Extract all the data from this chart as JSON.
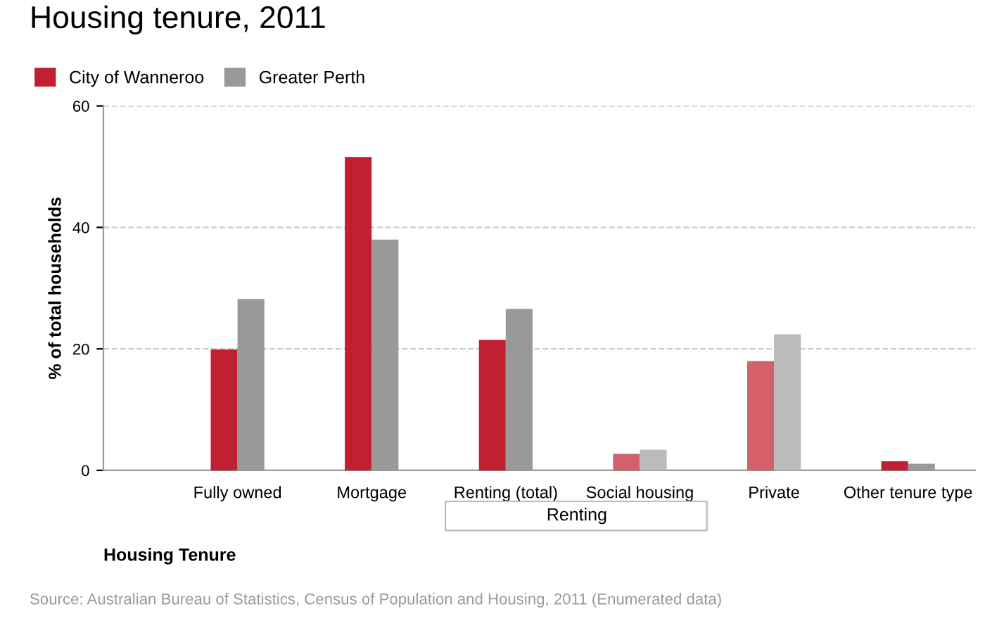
{
  "chart_data": {
    "type": "bar",
    "title": "Housing tenure, 2011",
    "xlabel": "Housing Tenure",
    "ylabel": "% of total households",
    "categories": [
      "Fully owned",
      "Mortgage",
      "Renting (total)",
      "Social housing",
      "Private",
      "Other tenure type"
    ],
    "series": [
      {
        "name": "City of Wanneroo",
        "color": "#c0202f",
        "colors": [
          "#c0202f",
          "#c0202f",
          "#c0202f",
          "#d4606a",
          "#d4606a",
          "#c0202f"
        ],
        "values": [
          19.9,
          51.6,
          21.5,
          2.7,
          18.0,
          1.5
        ]
      },
      {
        "name": "Greater Perth",
        "color": "#999999",
        "colors": [
          "#999999",
          "#999999",
          "#999999",
          "#bbbbbb",
          "#bbbbbb",
          "#999999"
        ],
        "values": [
          28.2,
          38.0,
          26.6,
          3.4,
          22.4,
          1.1
        ]
      }
    ],
    "ylim": [
      0,
      60
    ],
    "yticks": [
      0,
      20,
      40,
      60
    ],
    "grid": "y",
    "legend": "top left",
    "annotations": [
      "Renting",
      "Source: Australian Bureau of Statistics, Census of Population and Housing, 2011 (Enumerated data)"
    ]
  }
}
